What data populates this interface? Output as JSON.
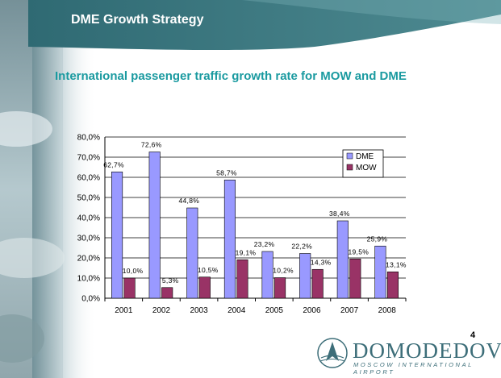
{
  "slide": {
    "header_title": "DME Growth Strategy",
    "subtitle": "International passenger traffic growth rate for MOW and DME",
    "page_number": "4",
    "logo_wordmark": "DOMODEDOVO",
    "logo_tagline": "MOSCOW INTERNATIONAL AIRPORT",
    "colors": {
      "header_teal": "#3d7a80",
      "subtitle_teal": "#1a9aa0",
      "logo_teal": "#3d6e79"
    }
  },
  "chart_data": {
    "type": "bar",
    "categories": [
      "2001",
      "2002",
      "2003",
      "2004",
      "2005",
      "2006",
      "2007",
      "2008"
    ],
    "series": [
      {
        "name": "DME",
        "color": "#9999ff",
        "values": [
          62.7,
          72.6,
          44.8,
          58.7,
          23.2,
          22.2,
          38.4,
          25.9
        ],
        "labels": [
          "62,7%",
          "72,6%",
          "44,8%",
          "58,7%",
          "23,2%",
          "22,2%",
          "38,4%",
          "25,9%"
        ]
      },
      {
        "name": "MOW",
        "color": "#993366",
        "values": [
          10.0,
          5.3,
          10.5,
          19.1,
          10.2,
          14.3,
          19.5,
          13.1
        ],
        "labels": [
          "10,0%",
          "5,3%",
          "10,5%",
          "19,1%",
          "10,2%",
          "14,3%",
          "19,5%",
          "13,1%"
        ]
      }
    ],
    "ylim": [
      0,
      80
    ],
    "yticks": [
      "0,0%",
      "10,0%",
      "20,0%",
      "30,0%",
      "40,0%",
      "50,0%",
      "60,0%",
      "70,0%",
      "80,0%"
    ],
    "grid": true,
    "legend_position": "top-right",
    "title": "",
    "xlabel": "",
    "ylabel": ""
  }
}
